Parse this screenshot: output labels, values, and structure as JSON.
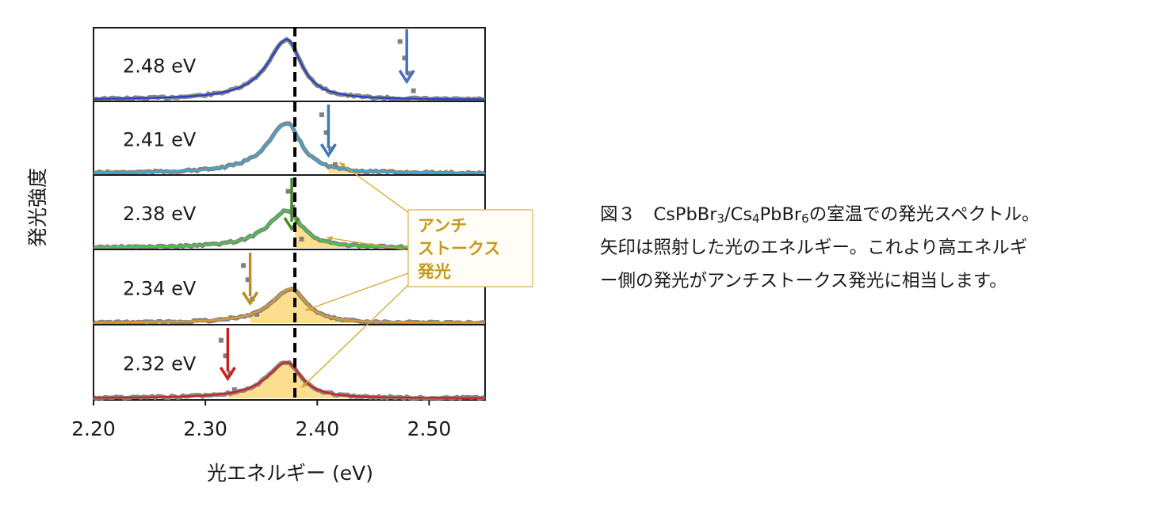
{
  "chart_data": {
    "type": "line",
    "ylabel": "発光強度",
    "xlabel": "光エネルギー (eV)",
    "xlim": [
      2.2,
      2.55
    ],
    "xticks": [
      "2.20",
      "2.30",
      "2.40",
      "2.50"
    ],
    "tick_values": [
      2.2,
      2.3,
      2.4,
      2.5
    ],
    "dashed_line_x": 2.38,
    "annotation": [
      "アンチ",
      "ストークス",
      "発光"
    ],
    "series": [
      {
        "label": "2.48 eV",
        "excitation": 2.48,
        "color": "#2441c4",
        "arrow_color": "#4a6ec2",
        "peak": 2.373,
        "fwhm_left": 0.043,
        "fwhm_right": 0.031,
        "height": 0.82,
        "fill": false
      },
      {
        "label": "2.41 eV",
        "excitation": 2.41,
        "color": "#3aa8d8",
        "arrow_color": "#3a7ab8",
        "peak": 2.373,
        "fwhm_left": 0.043,
        "fwhm_right": 0.031,
        "height": 0.68,
        "fill": true
      },
      {
        "label": "2.38 eV",
        "excitation": 2.38,
        "color": "#3dcc3d",
        "arrow_color": "#4a8a2a",
        "peak": 2.373,
        "fwhm_left": 0.043,
        "fwhm_right": 0.031,
        "height": 0.5,
        "fill": true
      },
      {
        "label": "2.34 eV",
        "excitation": 2.34,
        "color": "#e29a2a",
        "arrow_color": "#b8901e",
        "peak": 2.377,
        "fwhm_left": 0.043,
        "fwhm_right": 0.031,
        "height": 0.46,
        "fill": true
      },
      {
        "label": "2.32 eV",
        "excitation": 2.32,
        "color": "#d41e1e",
        "arrow_color": "#cc1f1f",
        "peak": 2.373,
        "fwhm_left": 0.043,
        "fwhm_right": 0.031,
        "height": 0.48,
        "fill": true
      }
    ]
  },
  "caption": {
    "lines": [
      {
        "parts": [
          [
            "t",
            "図３　CsPbBr"
          ],
          [
            "s",
            "3"
          ],
          [
            "t",
            "/Cs"
          ],
          [
            "s",
            "4"
          ],
          [
            "t",
            "PbBr"
          ],
          [
            "s",
            "6"
          ],
          [
            "t",
            "の室温での発光スペクトル。"
          ]
        ]
      },
      {
        "parts": [
          [
            "t",
            "矢印は照射した光のエネルギー。これより高エネルギ"
          ]
        ]
      },
      {
        "parts": [
          [
            "t",
            "ー側の発光がアンチストークス発光に相当します。"
          ]
        ]
      }
    ]
  }
}
